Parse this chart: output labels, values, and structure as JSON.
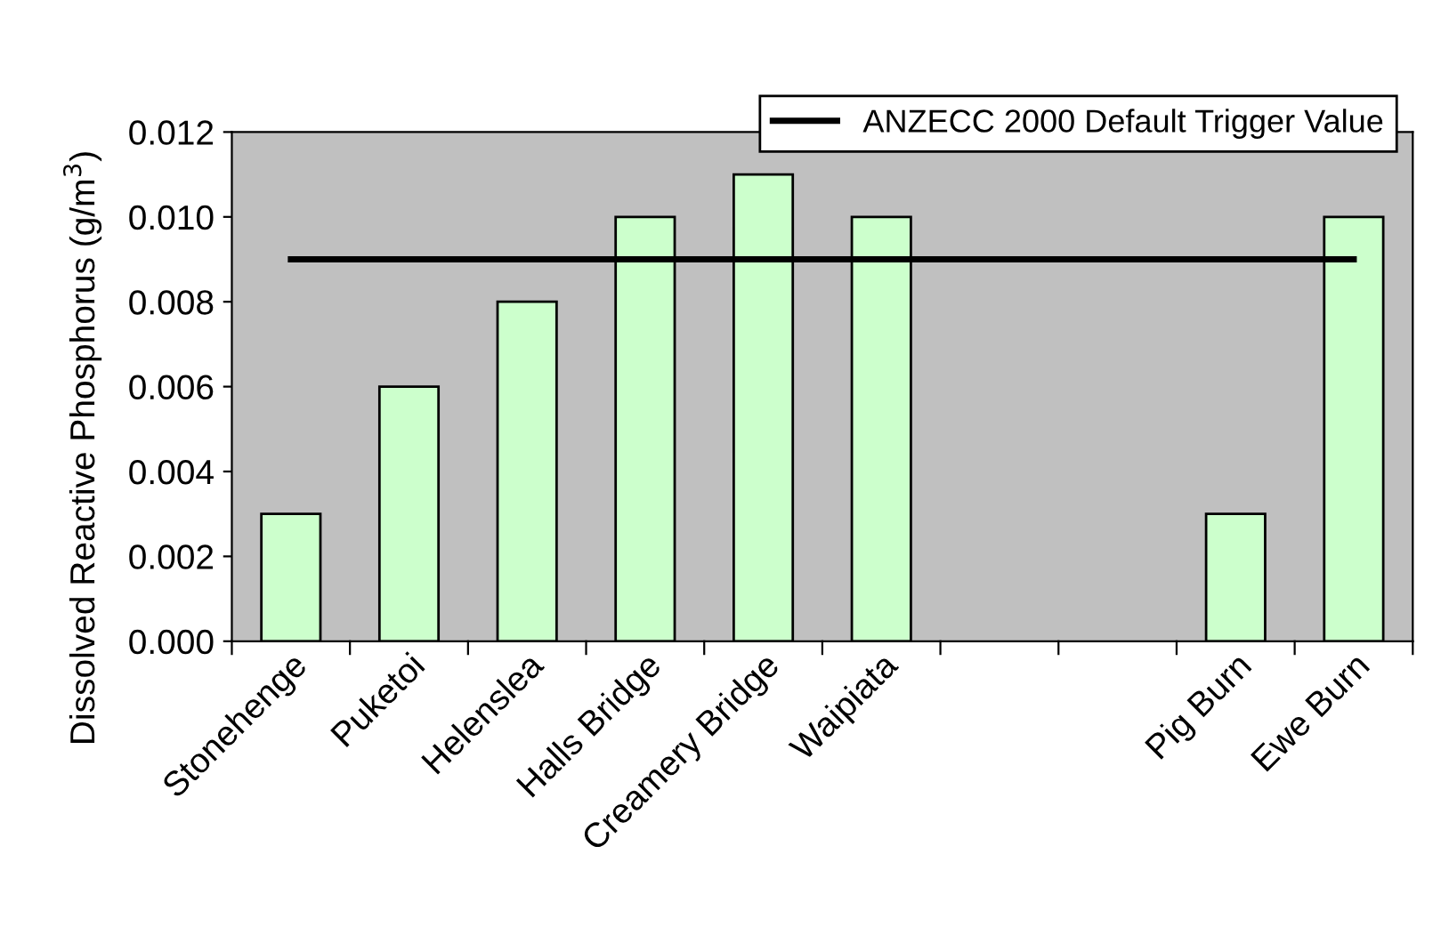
{
  "chart_data": {
    "type": "bar",
    "ylabel": "Dissolved Reactive Phosphorus (g/m$^{3}$)",
    "categories": [
      "Stonehenge",
      "Puketoi",
      "Helenslea",
      "Halls Bridge",
      "Creamery Bridge",
      "Waipiata",
      null,
      null,
      "Pig Burn",
      "Ewe Burn"
    ],
    "series": [
      {
        "color": "#ccffcc",
        "values": [
          0.003,
          0.006,
          0.008,
          0.01,
          0.011,
          0.01,
          null,
          null,
          0.003,
          0.01
        ]
      },
      {
        "type": "line",
        "name": "ANZECC 2000 Default Trigger Value",
        "color": "#000000",
        "values": [
          0.009,
          0.009,
          0.009,
          0.009,
          0.009,
          0.009,
          0.009,
          0.009,
          0.009,
          0.009
        ]
      }
    ],
    "ylim": [
      0,
      0.012
    ],
    "yticks": [
      {
        "value": 0,
        "label": "0.000"
      },
      {
        "value": 0.002,
        "label": "0.002"
      },
      {
        "value": 0.004,
        "label": "0.004"
      },
      {
        "value": 0.006,
        "label": "0.006"
      },
      {
        "value": 0.008,
        "label": "0.008"
      },
      {
        "value": 0.01,
        "label": "0.010"
      },
      {
        "value": 0.012,
        "label": "0.012"
      }
    ],
    "grid": false,
    "legend": "top right",
    "marker": "none",
    "line_style": "solid"
  }
}
